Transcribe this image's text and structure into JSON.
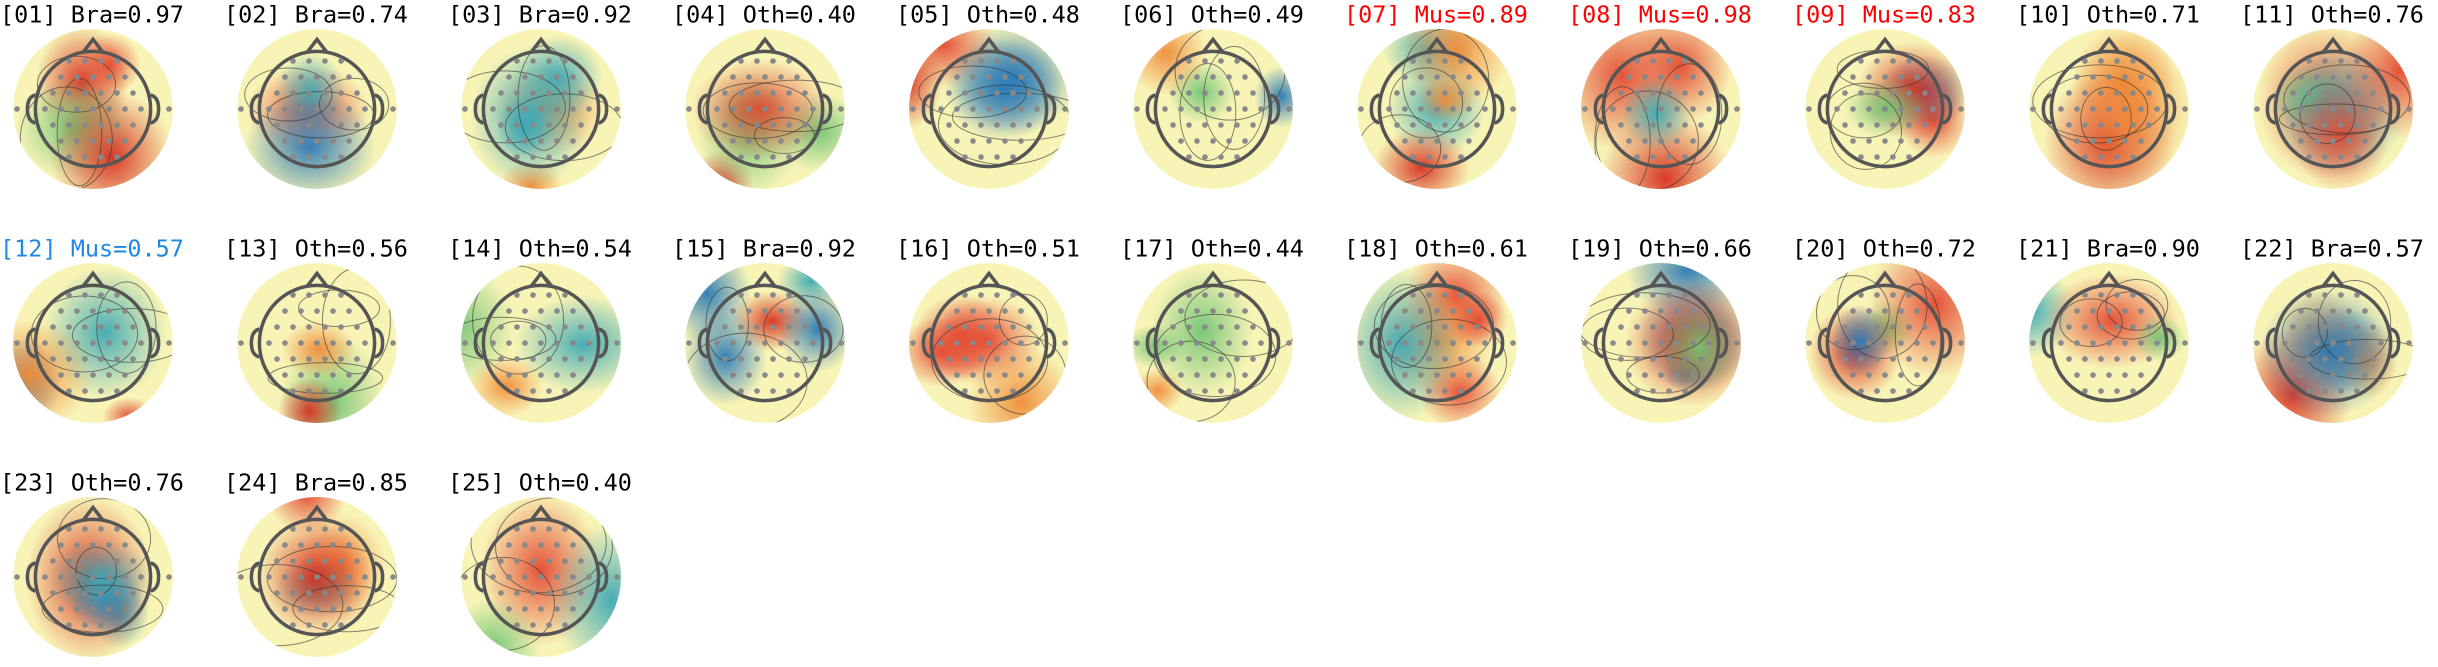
{
  "panels": [
    {
      "title": "[01] Bra=0.97",
      "color": "#000000"
    },
    {
      "title": "[02] Bra=0.74",
      "color": "#000000"
    },
    {
      "title": "[03] Bra=0.92",
      "color": "#000000"
    },
    {
      "title": "[04] Oth=0.40",
      "color": "#000000"
    },
    {
      "title": "[05] Oth=0.48",
      "color": "#000000"
    },
    {
      "title": "[06] Oth=0.49",
      "color": "#000000"
    },
    {
      "title": "[07] Mus=0.89",
      "color": "#ff0000"
    },
    {
      "title": "[08] Mus=0.98",
      "color": "#ff0000"
    },
    {
      "title": "[09] Mus=0.83",
      "color": "#ff0000"
    },
    {
      "title": "[10] Oth=0.71",
      "color": "#000000"
    },
    {
      "title": "[11] Oth=0.76",
      "color": "#000000"
    },
    {
      "title": "[12] Mus=0.57",
      "color": "#1e88e5"
    },
    {
      "title": "[13] Oth=0.56",
      "color": "#000000"
    },
    {
      "title": "[14] Oth=0.54",
      "color": "#000000"
    },
    {
      "title": "[15] Bra=0.92",
      "color": "#000000"
    },
    {
      "title": "[16] Oth=0.51",
      "color": "#000000"
    },
    {
      "title": "[17] Oth=0.44",
      "color": "#000000"
    },
    {
      "title": "[18] Oth=0.61",
      "color": "#000000"
    },
    {
      "title": "[19] Oth=0.66",
      "color": "#000000"
    },
    {
      "title": "[20] Oth=0.72",
      "color": "#000000"
    },
    {
      "title": "[21] Bra=0.90",
      "color": "#000000"
    },
    {
      "title": "[22] Bra=0.57",
      "color": "#000000"
    },
    {
      "title": "[23] Oth=0.76",
      "color": "#000000"
    },
    {
      "title": "[24] Bra=0.85",
      "color": "#000000"
    },
    {
      "title": "[25] Oth=0.40",
      "color": "#000000"
    }
  ]
}
